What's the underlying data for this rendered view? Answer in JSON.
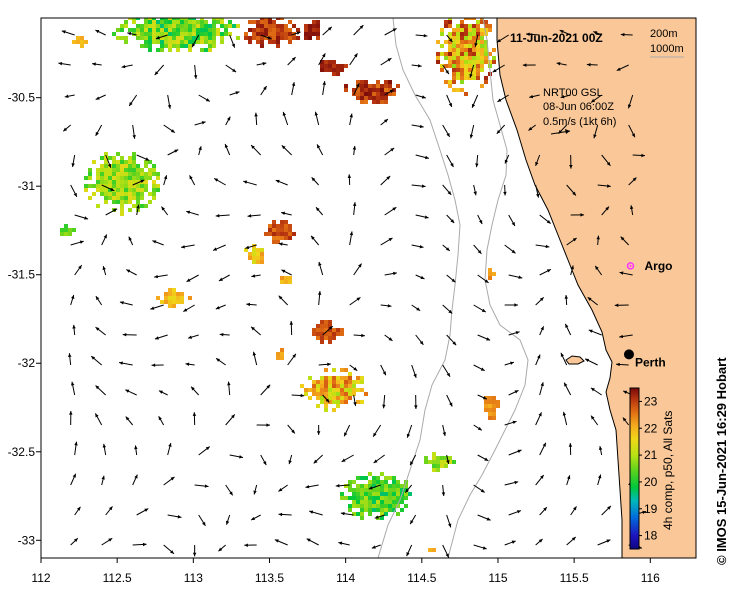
{
  "map": {
    "timestamp": "11-Jun-2021 00Z",
    "bathymetry_legend": [
      "200m",
      "1000m"
    ],
    "current_info": {
      "lines": [
        "NRT00 GSL",
        "08-Jun 06:00Z",
        "0.5m/s (1kt 6h)"
      ]
    },
    "places": [
      {
        "name": "Argo",
        "lon": 115.87,
        "lat": -31.45,
        "marker": "argo-float",
        "color": "#ff33ff"
      },
      {
        "name": "Perth",
        "lon": 115.86,
        "lat": -31.95,
        "marker": "city-dot",
        "color": "#000000"
      }
    ],
    "x_ticks": [
      "112",
      "112.5",
      "113",
      "113.5",
      "114",
      "114.5",
      "115",
      "115.5",
      "116"
    ],
    "y_ticks": [
      "-30.5",
      "-31",
      "-31.5",
      "-32",
      "-32.5",
      "-33"
    ],
    "lon_range": [
      112,
      116.3
    ],
    "lat_range": [
      -33.1,
      -30.05
    ],
    "colorbar": {
      "ticks": [
        "23",
        "22",
        "21",
        "20",
        "19",
        "18"
      ],
      "range": [
        17.5,
        23.5
      ],
      "title": "4h comp, p50, All Sats"
    },
    "credit": "© IMOS 15-Jun-2021 16:29 Hobart",
    "colors": {
      "land": "#fac898",
      "bathy": "#aaaaaa",
      "arrow": "#000000"
    }
  }
}
